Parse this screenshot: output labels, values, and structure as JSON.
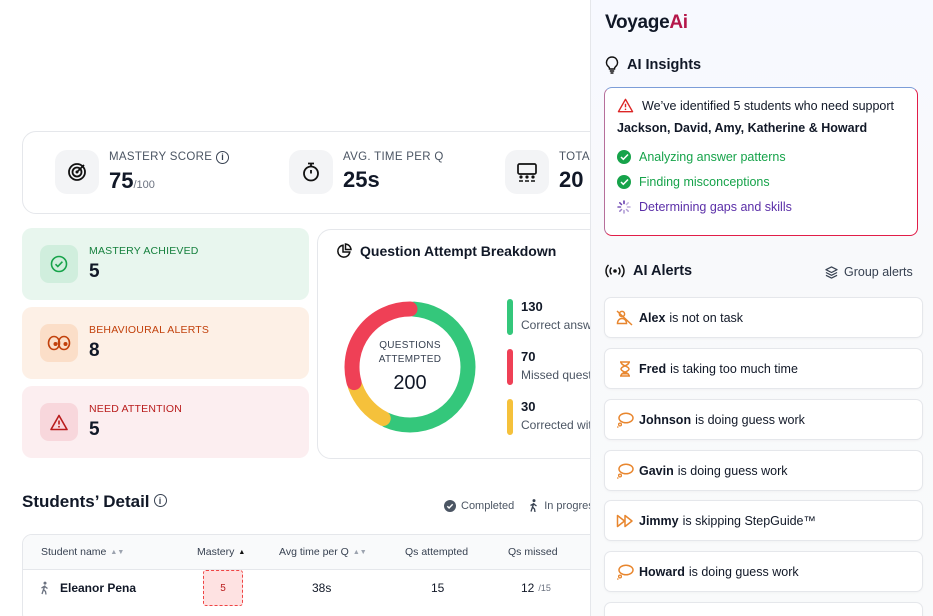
{
  "stats": [
    {
      "label": "MASTERY SCORE",
      "value": "75",
      "suffix": "/100",
      "icon": "target-icon"
    },
    {
      "label": "AVG. TIME PER Q",
      "value": "25s",
      "icon": "stopwatch-icon"
    },
    {
      "label": "TOTAL",
      "value": "20",
      "icon": "classroom-icon"
    }
  ],
  "alert_cards": {
    "mastery": {
      "label": "MASTERY ACHIEVED",
      "value": "5"
    },
    "behaviour": {
      "label": "BEHAVIOURAL ALERTS",
      "value": "8"
    },
    "attention": {
      "label": "NEED ATTENTION",
      "value": "5"
    }
  },
  "breakdown": {
    "title": "Question Attempt Breakdown",
    "center_label_1": "QUESTIONS",
    "center_label_2": "ATTEMPTED",
    "center_value": "200",
    "legend": [
      {
        "value": "130",
        "text": "Correct answ",
        "color": "#34c77b"
      },
      {
        "value": "70",
        "text": "Missed quest",
        "color": "#ef4056"
      },
      {
        "value": "30",
        "text": "Corrected wit",
        "color": "#f5c13b"
      }
    ]
  },
  "chart_data": {
    "type": "pie",
    "categories": [
      "Correct",
      "Missed",
      "Corrected"
    ],
    "values": [
      130,
      70,
      30
    ],
    "colors": [
      "#34c77b",
      "#ef4056",
      "#f5c13b"
    ]
  },
  "students": {
    "title": "Students’ Detail",
    "status_completed": "Completed",
    "status_in_progress": "In progress",
    "columns": [
      "Student name",
      "Mastery",
      "Avg time per Q",
      "Qs attempted",
      "Qs missed"
    ],
    "rows": [
      {
        "name": "Eleanor Pena",
        "mastery": "5",
        "avg_time": "38s",
        "attempted": "15",
        "missed": "12",
        "missed_total": "/15"
      }
    ]
  },
  "panel": {
    "logo_main": "Voyage",
    "logo_ai": "Ai",
    "insights_title": "AI Insights",
    "insight_message": "We’ve identified 5 students who need support",
    "insight_names": "Jackson, David, Amy, Katherine & Howard",
    "steps": [
      {
        "text": "Analyzing answer patterns",
        "state": "done"
      },
      {
        "text": "Finding misconceptions",
        "state": "done"
      },
      {
        "text": "Determining gaps and skills",
        "state": "pending"
      }
    ],
    "alerts_title": "AI Alerts",
    "group_alerts_label": "Group alerts",
    "alerts": [
      {
        "name": "Alex",
        "text": "is not on task",
        "icon": "off-task-icon"
      },
      {
        "name": "Fred",
        "text": "is taking too much time",
        "icon": "hourglass-icon"
      },
      {
        "name": "Johnson",
        "text": "is doing guess work",
        "icon": "thought-bubble-icon"
      },
      {
        "name": "Gavin",
        "text": "is doing guess work",
        "icon": "thought-bubble-icon"
      },
      {
        "name": "Jimmy",
        "text": "is skipping StepGuide™",
        "icon": "skip-forward-icon"
      },
      {
        "name": "Howard",
        "text": "is doing guess work",
        "icon": "thought-bubble-icon"
      }
    ],
    "accent": "#e8862e",
    "brand": "#b5174a"
  }
}
